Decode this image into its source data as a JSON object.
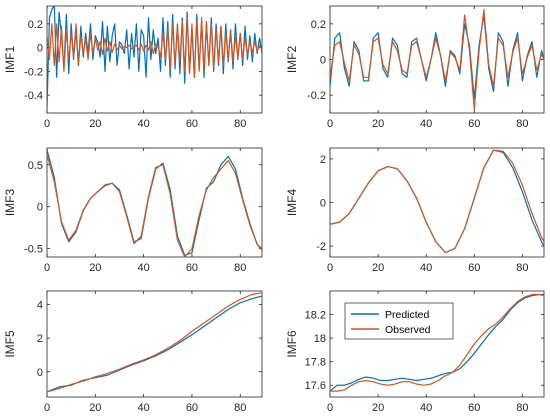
{
  "chart_data": [
    {
      "type": "line",
      "ylabel": "IMF1",
      "xlim": [
        0,
        89
      ],
      "ylim": [
        -0.55,
        0.35
      ],
      "xticks": [
        0,
        20,
        40,
        60,
        80
      ],
      "yticks": [
        -0.4,
        -0.2,
        0,
        0.2
      ],
      "ytick_labels": [
        "-0.4",
        "-0.2",
        "0",
        "0.2"
      ],
      "x": [
        0,
        1,
        2,
        3,
        4,
        5,
        6,
        7,
        8,
        9,
        10,
        11,
        12,
        13,
        14,
        15,
        16,
        17,
        18,
        19,
        20,
        21,
        22,
        23,
        24,
        25,
        26,
        27,
        28,
        29,
        30,
        31,
        32,
        33,
        34,
        35,
        36,
        37,
        38,
        39,
        40,
        41,
        42,
        43,
        44,
        45,
        46,
        47,
        48,
        49,
        50,
        51,
        52,
        53,
        54,
        55,
        56,
        57,
        58,
        59,
        60,
        61,
        62,
        63,
        64,
        65,
        66,
        67,
        68,
        69,
        70,
        71,
        72,
        73,
        74,
        75,
        76,
        77,
        78,
        79,
        80,
        81,
        82,
        83,
        84,
        85,
        86,
        87,
        88,
        89
      ],
      "series": [
        {
          "name": "Predicted",
          "color": "#0072BD",
          "values": [
            -0.52,
            0.25,
            0.32,
            0.36,
            -0.25,
            0.3,
            0.1,
            -0.18,
            0.28,
            -0.22,
            0.2,
            -0.1,
            0.15,
            -0.15,
            0.18,
            -0.08,
            0.12,
            -0.05,
            0.2,
            -0.1,
            0.1,
            0.05,
            -0.08,
            0.22,
            -0.2,
            0.18,
            -0.12,
            0.1,
            0.2,
            -0.15,
            0.05,
            0.02,
            -0.05,
            0.15,
            -0.18,
            0.12,
            -0.08,
            0.2,
            -0.2,
            0.15,
            0.1,
            -0.25,
            0.25,
            -0.1,
            0.15,
            -0.05,
            0.08,
            -0.2,
            0.25,
            -0.15,
            0.22,
            -0.25,
            0.28,
            -0.18,
            0.2,
            -0.22,
            0.25,
            -0.3,
            0.3,
            -0.2,
            0.15,
            -0.25,
            0.28,
            -0.18,
            0.22,
            -0.25,
            0.2,
            -0.15,
            0.25,
            -0.2,
            0.2,
            -0.15,
            0.18,
            -0.22,
            0.2,
            -0.12,
            0.15,
            -0.18,
            0.2,
            -0.1,
            0.12,
            -0.15,
            0.18,
            -0.1,
            0.1,
            -0.12,
            0.12,
            -0.05,
            0.08,
            -0.05
          ]
        },
        {
          "name": "Observed",
          "color": "#D95319",
          "values": [
            0.1,
            -0.1,
            0.2,
            -0.15,
            0.2,
            -0.12,
            0.18,
            -0.2,
            0.15,
            -0.1,
            0.12,
            -0.08,
            0.2,
            -0.15,
            0.1,
            -0.05,
            0.08,
            -0.1,
            0.12,
            -0.05,
            0.08,
            -0.02,
            0.05,
            -0.06,
            0.08,
            -0.03,
            0.05,
            -0.04,
            0.03,
            -0.02,
            0.02,
            -0.01,
            0.01,
            0,
            0.02,
            -0.01,
            0.01,
            0.02,
            -0.02,
            0.03,
            -0.03,
            0.02,
            -0.02,
            0.05,
            -0.05,
            0.03,
            0.01,
            -0.08,
            0.12,
            -0.1,
            0.15,
            -0.18,
            0.2,
            -0.15,
            0.18,
            -0.12,
            0.22,
            -0.2,
            0.25,
            -0.22,
            0.2,
            -0.25,
            0.22,
            -0.2,
            0.25,
            -0.2,
            0.22,
            -0.15,
            0.2,
            -0.18,
            0.15,
            -0.12,
            0.18,
            -0.15,
            0.12,
            -0.1,
            0.15,
            -0.12,
            0.1,
            -0.08,
            0.12,
            -0.1,
            0.08,
            -0.06,
            0.05,
            -0.04,
            0.05,
            -0.03,
            0.02,
            -0.02
          ]
        }
      ]
    },
    {
      "type": "line",
      "ylabel": "IMF2",
      "xlim": [
        0,
        89
      ],
      "ylim": [
        -0.3,
        0.3
      ],
      "xticks": [
        0,
        20,
        40,
        60,
        80
      ],
      "yticks": [
        -0.2,
        0,
        0.2
      ],
      "ytick_labels": [
        "-0.2",
        "0",
        "0.2"
      ],
      "x": [
        0,
        2,
        4,
        6,
        8,
        10,
        12,
        14,
        16,
        18,
        20,
        22,
        24,
        26,
        28,
        30,
        32,
        34,
        36,
        38,
        40,
        42,
        44,
        46,
        48,
        50,
        52,
        54,
        56,
        58,
        60,
        62,
        64,
        66,
        68,
        70,
        72,
        74,
        76,
        78,
        80,
        82,
        84,
        86,
        88,
        89
      ],
      "series": [
        {
          "name": "Predicted",
          "color": "#0072BD",
          "values": [
            -0.15,
            0.12,
            0.15,
            -0.05,
            -0.15,
            0.1,
            0.05,
            -0.12,
            -0.12,
            0.12,
            0.15,
            -0.05,
            -0.1,
            0.12,
            0.08,
            -0.08,
            -0.1,
            0.1,
            0.12,
            0,
            -0.12,
            0,
            0.15,
            0.02,
            -0.15,
            0.05,
            0.02,
            -0.08,
            0.2,
            0.08,
            -0.22,
            0.08,
            0.25,
            -0.05,
            -0.18,
            0.15,
            0.1,
            -0.15,
            0.05,
            0.15,
            -0.12,
            0.02,
            0.1,
            -0.1,
            0.05,
            0
          ]
        },
        {
          "name": "Observed",
          "color": "#D95319",
          "values": [
            -0.1,
            0.08,
            0.1,
            -0.02,
            -0.12,
            0.08,
            0.03,
            -0.1,
            -0.1,
            0.1,
            0.12,
            -0.03,
            -0.08,
            0.1,
            0.05,
            -0.06,
            -0.08,
            0.08,
            0.1,
            0,
            -0.1,
            0,
            0.12,
            0.02,
            -0.12,
            0.04,
            0.01,
            -0.06,
            0.25,
            0.05,
            -0.28,
            0.05,
            0.28,
            -0.03,
            -0.15,
            0.12,
            0.08,
            -0.1,
            0.04,
            0.12,
            -0.08,
            0.01,
            0.08,
            -0.06,
            0.03,
            0
          ]
        }
      ]
    },
    {
      "type": "line",
      "ylabel": "IMF3",
      "xlim": [
        0,
        89
      ],
      "ylim": [
        -0.6,
        0.7
      ],
      "xticks": [
        0,
        20,
        40,
        60,
        80
      ],
      "yticks": [
        -0.5,
        0,
        0.5
      ],
      "ytick_labels": [
        "-0.5",
        "0",
        "0.5"
      ],
      "x": [
        0,
        3,
        6,
        9,
        12,
        15,
        18,
        21,
        24,
        27,
        30,
        33,
        36,
        39,
        42,
        45,
        48,
        51,
        54,
        57,
        60,
        63,
        66,
        69,
        72,
        75,
        78,
        81,
        84,
        87,
        89
      ],
      "series": [
        {
          "name": "Predicted",
          "color": "#0072BD",
          "values": [
            0.68,
            0.35,
            -0.2,
            -0.42,
            -0.3,
            -0.05,
            0.1,
            0.18,
            0.25,
            0.28,
            0.2,
            -0.1,
            -0.42,
            -0.38,
            0.1,
            0.45,
            0.52,
            0.2,
            -0.35,
            -0.58,
            -0.55,
            -0.15,
            0.22,
            0.3,
            0.5,
            0.6,
            0.45,
            0.1,
            -0.2,
            -0.45,
            -0.5
          ]
        },
        {
          "name": "Observed",
          "color": "#D95319",
          "values": [
            0.62,
            0.3,
            -0.18,
            -0.4,
            -0.28,
            -0.04,
            0.1,
            0.18,
            0.26,
            0.28,
            0.18,
            -0.12,
            -0.44,
            -0.35,
            0.12,
            0.47,
            0.5,
            0.15,
            -0.4,
            -0.6,
            -0.5,
            -0.1,
            0.2,
            0.35,
            0.45,
            0.55,
            0.4,
            0.08,
            -0.22,
            -0.45,
            -0.52
          ]
        }
      ]
    },
    {
      "type": "line",
      "ylabel": "IMF4",
      "xlim": [
        0,
        89
      ],
      "ylim": [
        -2.5,
        2.5
      ],
      "xticks": [
        0,
        20,
        40,
        60,
        80
      ],
      "yticks": [
        -2,
        0,
        2
      ],
      "ytick_labels": [
        "-2",
        "0",
        "2"
      ],
      "x": [
        0,
        4,
        8,
        12,
        16,
        20,
        24,
        28,
        32,
        36,
        40,
        44,
        48,
        52,
        56,
        60,
        64,
        68,
        72,
        76,
        80,
        84,
        88,
        89
      ],
      "series": [
        {
          "name": "Predicted",
          "color": "#0072BD",
          "values": [
            -1.0,
            -0.9,
            -0.5,
            0.2,
            0.9,
            1.45,
            1.65,
            1.55,
            1.0,
            0.2,
            -0.9,
            -1.8,
            -2.3,
            -2.1,
            -1.2,
            0.2,
            1.6,
            2.4,
            2.3,
            1.6,
            0.5,
            -0.8,
            -1.8,
            -2.0
          ]
        },
        {
          "name": "Observed",
          "color": "#D95319",
          "values": [
            -1.0,
            -0.9,
            -0.5,
            0.2,
            0.9,
            1.45,
            1.65,
            1.55,
            1.0,
            0.2,
            -0.9,
            -1.8,
            -2.3,
            -2.1,
            -1.2,
            0.2,
            1.6,
            2.4,
            2.35,
            1.8,
            0.8,
            -0.5,
            -1.6,
            -1.8
          ]
        }
      ]
    },
    {
      "type": "line",
      "ylabel": "IMF5",
      "xlim": [
        0,
        89
      ],
      "ylim": [
        -1.5,
        4.8
      ],
      "xticks": [
        0,
        20,
        40,
        60,
        80
      ],
      "yticks": [
        0,
        2,
        4
      ],
      "ytick_labels": [
        "0",
        "2",
        "4"
      ],
      "x": [
        0,
        5,
        10,
        15,
        20,
        25,
        30,
        35,
        40,
        45,
        50,
        55,
        60,
        65,
        70,
        75,
        80,
        85,
        89
      ],
      "series": [
        {
          "name": "Predicted",
          "color": "#0072BD",
          "values": [
            -1.2,
            -0.9,
            -0.8,
            -0.5,
            -0.35,
            -0.2,
            0.1,
            0.4,
            0.65,
            0.95,
            1.3,
            1.75,
            2.2,
            2.7,
            3.2,
            3.7,
            4.1,
            4.35,
            4.5
          ]
        },
        {
          "name": "Observed",
          "color": "#D95319",
          "values": [
            -1.2,
            -1.0,
            -0.75,
            -0.55,
            -0.3,
            -0.1,
            0.15,
            0.45,
            0.7,
            1.0,
            1.4,
            1.85,
            2.4,
            2.9,
            3.4,
            3.9,
            4.3,
            4.6,
            4.7
          ]
        }
      ]
    },
    {
      "type": "line",
      "ylabel": "IMF6",
      "xlim": [
        0,
        89
      ],
      "ylim": [
        17.5,
        18.4
      ],
      "xticks": [
        0,
        20,
        40,
        60,
        80
      ],
      "yticks": [
        17.6,
        17.8,
        18,
        18.2
      ],
      "ytick_labels": [
        "17.6",
        "17.8",
        "18",
        "18.2"
      ],
      "legend": "top-left",
      "x": [
        0,
        3,
        6,
        9,
        12,
        15,
        18,
        21,
        24,
        27,
        30,
        33,
        36,
        39,
        42,
        45,
        48,
        51,
        54,
        57,
        60,
        63,
        66,
        69,
        72,
        75,
        78,
        81,
        84,
        87,
        89
      ],
      "series": [
        {
          "name": "Predicted",
          "color": "#0072BD",
          "values": [
            17.55,
            17.6,
            17.6,
            17.62,
            17.65,
            17.67,
            17.66,
            17.64,
            17.64,
            17.65,
            17.66,
            17.65,
            17.64,
            17.65,
            17.66,
            17.68,
            17.7,
            17.71,
            17.74,
            17.8,
            17.87,
            17.95,
            18.03,
            18.1,
            18.16,
            18.24,
            18.3,
            18.34,
            18.36,
            18.37,
            18.37
          ]
        },
        {
          "name": "Observed",
          "color": "#D95319",
          "values": [
            17.55,
            17.55,
            17.56,
            17.6,
            17.63,
            17.64,
            17.63,
            17.61,
            17.6,
            17.61,
            17.63,
            17.63,
            17.61,
            17.6,
            17.61,
            17.64,
            17.68,
            17.71,
            17.77,
            17.86,
            17.95,
            18.02,
            18.08,
            18.12,
            18.18,
            18.25,
            18.31,
            18.35,
            18.37,
            18.37,
            18.36
          ]
        }
      ]
    }
  ]
}
